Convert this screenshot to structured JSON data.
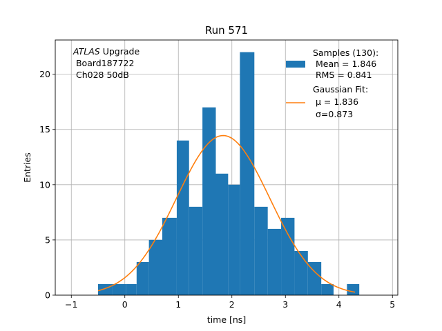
{
  "chart_data": {
    "type": "bar",
    "title": "Run 571",
    "xlabel": "time [ns]",
    "ylabel": "Entries",
    "xlim": [
      -1.3,
      5.1
    ],
    "ylim": [
      0,
      23.1
    ],
    "grid": true,
    "xticks": [
      -1,
      0,
      1,
      2,
      3,
      4,
      5
    ],
    "yticks": [
      0,
      5,
      10,
      15,
      20
    ],
    "annotation": {
      "line1_italic": "ATLAS",
      "line1_rest": " Upgrade",
      "line2": " Board187722",
      "line3": " Ch028 50dB"
    },
    "histogram": {
      "name_lines": [
        "Samples (130):",
        " Mean = 1.846",
        " RMS = 0.841"
      ],
      "color": "#1f77b4",
      "bin_edges": [
        -0.5,
        -0.23,
        0.02,
        0.22,
        0.45,
        0.7,
        0.97,
        1.2,
        1.45,
        1.7,
        1.93,
        2.15,
        2.42,
        2.67,
        2.92,
        3.17,
        3.42,
        3.67,
        3.9,
        4.15,
        4.38
      ],
      "counts": [
        1,
        1,
        1,
        3,
        5,
        7,
        14,
        8,
        17,
        11,
        10,
        22,
        8,
        6,
        7,
        4,
        3,
        1,
        0,
        1
      ]
    },
    "fit": {
      "name_lines": [
        "Gaussian Fit:",
        " μ = 1.836",
        " σ=0.873"
      ],
      "color": "#ff7f0e",
      "mu": 1.836,
      "sigma": 0.873,
      "amplitude": 14.45,
      "x_range": [
        -0.5,
        4.3
      ]
    }
  }
}
